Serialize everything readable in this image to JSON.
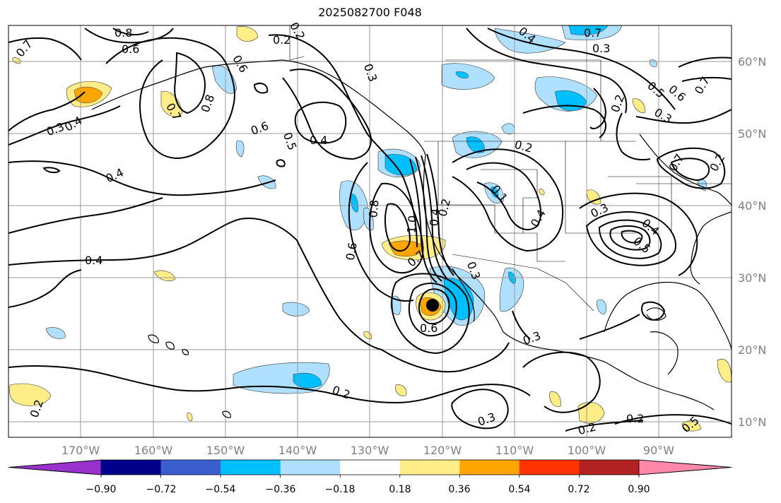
{
  "title": "2025082700 F048",
  "map": {
    "lon_labels": [
      "170°W",
      "160°W",
      "150°W",
      "140°W",
      "130°W",
      "120°W",
      "110°W",
      "100°W",
      "90°W"
    ],
    "lat_labels": [
      "60°N",
      "50°N",
      "40°N",
      "30°N",
      "20°N",
      "10°N"
    ]
  },
  "colorbar": {
    "labels": [
      "−0.90",
      "−0.72",
      "−0.54",
      "−0.36",
      "−0.18",
      "0.18",
      "0.36",
      "0.54",
      "0.72",
      "0.90"
    ],
    "colors": [
      "#9932cc",
      "#00008b",
      "#3a5fcd",
      "#00bfff",
      "#b0e0ff",
      "#ffffff",
      "#ffee88",
      "#ffa500",
      "#ff3300",
      "#b22222",
      "#ff88aa"
    ]
  },
  "contour_labels": [
    "0.7",
    "0.8",
    "0.6",
    "0.2",
    "0.4",
    "0.3",
    "0.4",
    "0.6",
    "0.5",
    "0.4",
    "0.8",
    "0.7",
    "0.4",
    "0.4",
    "0.6",
    "0.8",
    "1.0",
    "0.2",
    "0.4",
    "0.6",
    "0.3",
    "0.2",
    "0.3",
    "0.4",
    "0.3",
    "0.2",
    "0.2",
    "0.5",
    "0.7",
    "0.3",
    "0.2",
    "0.2",
    "0.2",
    "0.7",
    "0.3",
    "0.3",
    "0.5",
    "0.4",
    "0.3",
    "0.6",
    "0.5",
    "0.6",
    "0.7",
    "0.2",
    "0.1",
    "0.7",
    "0.2"
  ]
}
